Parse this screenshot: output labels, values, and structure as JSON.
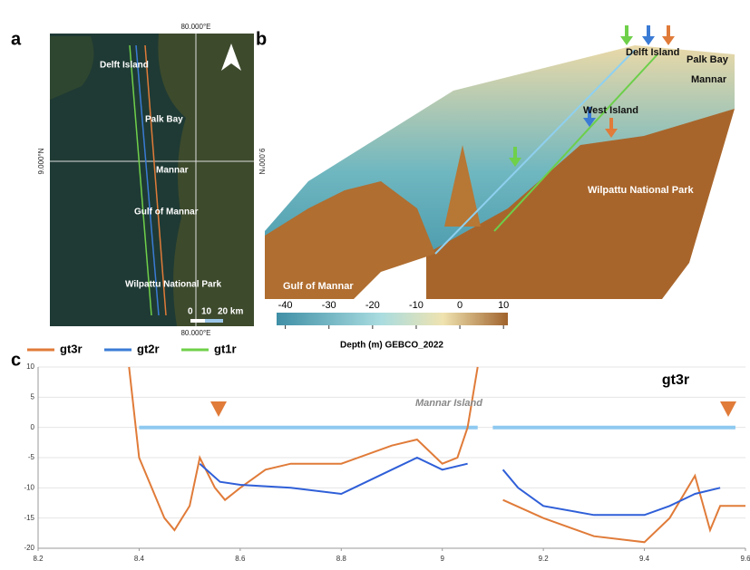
{
  "panel_labels": [
    "a",
    "b",
    "c"
  ],
  "map": {
    "top_label": "80.000°E",
    "bottom_label": "80.000°E",
    "left_label": "9.000°N",
    "right_label": "9.000°N",
    "places": [
      "Delft Island",
      "Palk Bay",
      "Mannar",
      "Gulf of Mannar",
      "Wilpattu National Park"
    ],
    "scale_labels": [
      "0",
      "10",
      "20 km"
    ]
  },
  "legend": [
    {
      "name": "gt3r",
      "color": "#e07b39"
    },
    {
      "name": "gt2r",
      "color": "#3a7bd5"
    },
    {
      "name": "gt1r",
      "color": "#6fd04a"
    }
  ],
  "terrain": {
    "places": [
      "Delft Island",
      "Palk Bay",
      "Mannar",
      "West Island",
      "Wilpattu National Park",
      "Gulf of Mannar"
    ],
    "colorbar": {
      "ticks": [
        -40,
        -30,
        -20,
        -10,
        0,
        10
      ],
      "lim": [
        -42,
        11
      ],
      "label": "Depth (m) GEBCO_2022"
    }
  },
  "chart_data": {
    "type": "line",
    "title": "gt3r",
    "annotation": "Mannar Island",
    "xlim": [
      8.2,
      9.6
    ],
    "xticks": [
      8.2,
      8.4,
      8.6,
      8.8,
      9,
      9.2,
      9.4,
      9.6
    ],
    "ylim": [
      -20,
      10
    ],
    "yticks": [
      10,
      5,
      0,
      -5,
      -10,
      -15,
      -20
    ],
    "series": [
      {
        "color": "#8ec9f0",
        "x": [
          8.4,
          9.07,
          null,
          9.1,
          9.58
        ],
        "values": [
          0,
          0,
          null,
          0,
          0
        ]
      },
      {
        "color": "#e07b39",
        "x": [
          8.38,
          8.4,
          8.45,
          8.47,
          8.5,
          8.52,
          8.55,
          8.57,
          8.6,
          8.65,
          8.7,
          8.8,
          8.9,
          8.95,
          9.0,
          9.03,
          9.05,
          9.07,
          null,
          9.12,
          9.2,
          9.3,
          9.4,
          9.45,
          9.5,
          9.53,
          9.55,
          9.6
        ],
        "values": [
          10,
          -5,
          -15,
          -17,
          -13,
          -5,
          -10,
          -12,
          -10,
          -7,
          -6,
          -6,
          -3,
          -2,
          -6,
          -5,
          0,
          10,
          null,
          -12,
          -15,
          -18,
          -19,
          -15,
          -8,
          -17,
          -13,
          -13
        ]
      },
      {
        "color": "#2f5fd8",
        "x": [
          8.52,
          8.56,
          8.6,
          8.7,
          8.8,
          8.85,
          8.9,
          8.95,
          9.0,
          9.05,
          null,
          9.12,
          9.15,
          9.2,
          9.3,
          9.4,
          9.45,
          9.5,
          9.55
        ],
        "values": [
          -6,
          -9,
          -9.5,
          -10,
          -11,
          -9,
          -7,
          -5,
          -7,
          -6,
          null,
          -7,
          -10,
          -13,
          -14.5,
          -14.5,
          -13,
          -11,
          -10
        ]
      }
    ]
  }
}
